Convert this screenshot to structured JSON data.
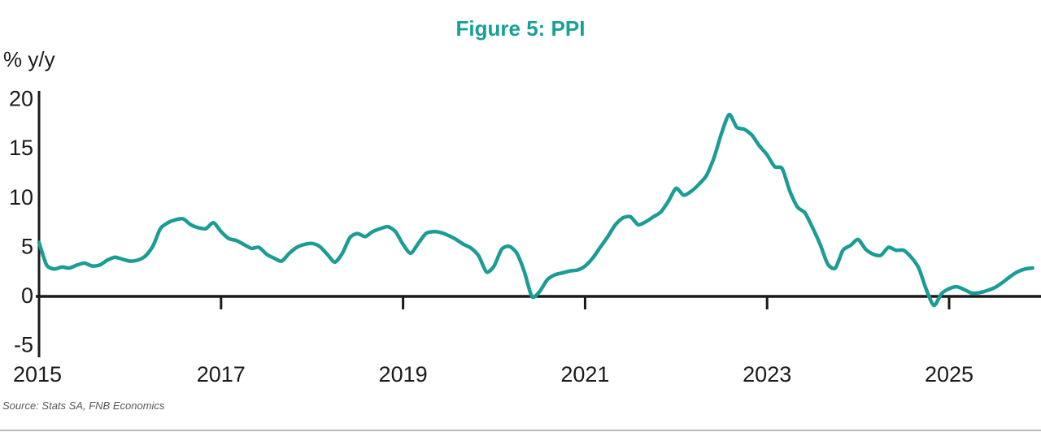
{
  "figure": {
    "title": "Figure 5: PPI",
    "y_axis_unit_label": "% y/y",
    "source": "Source: Stats SA, FNB Economics",
    "title_color": "#17a09a"
  },
  "chart_data": {
    "type": "line",
    "title": "Figure 5: PPI",
    "ylabel": "% y/y",
    "series_name": "PPI (% y/y)",
    "line_color": "#1b9c96",
    "axis_color": "#1a1a1a",
    "frequency": "monthly",
    "x_start_year": 2015,
    "x_tick_labels": [
      "2015",
      "2017",
      "2019",
      "2021",
      "2023",
      "2025"
    ],
    "y_ticks": [
      20,
      15,
      10,
      5,
      0,
      -5
    ],
    "ylim": [
      -5,
      20
    ],
    "grid": false,
    "legend": "none",
    "values_by_year": {
      "2015": [
        5.4,
        3.1,
        2.7,
        2.9,
        2.8,
        3.1,
        3.3,
        3.0,
        3.1,
        3.6,
        3.9,
        3.7
      ],
      "2016": [
        3.5,
        3.6,
        4.0,
        5.0,
        6.8,
        7.4,
        7.7,
        7.8,
        7.2,
        6.9,
        6.8,
        7.4
      ],
      "2017": [
        6.5,
        5.8,
        5.6,
        5.2,
        4.8,
        4.9,
        4.2,
        3.8,
        3.5,
        4.3,
        4.9,
        5.2
      ],
      "2018": [
        5.3,
        5.0,
        4.2,
        3.4,
        4.3,
        5.9,
        6.3,
        6.0,
        6.5,
        6.8,
        7.0,
        6.5
      ],
      "2019": [
        5.2,
        4.3,
        5.3,
        6.3,
        6.5,
        6.4,
        6.1,
        5.7,
        5.2,
        4.8,
        4.0,
        2.4
      ],
      "2020": [
        3.0,
        4.7,
        5.0,
        4.3,
        2.4,
        -0.1,
        0.4,
        1.6,
        2.1,
        2.3,
        2.5,
        2.6
      ],
      "2021": [
        3.0,
        3.8,
        4.9,
        6.0,
        7.2,
        7.9,
        8.0,
        7.2,
        7.5,
        8.0,
        8.5,
        9.6
      ],
      "2022": [
        10.9,
        10.2,
        10.6,
        11.3,
        12.2,
        14.0,
        16.5,
        18.4,
        17.1,
        16.9,
        16.3,
        15.2
      ],
      "2023": [
        14.3,
        13.1,
        12.9,
        10.6,
        9.0,
        8.4,
        6.9,
        5.2,
        3.2,
        2.8,
        4.6,
        5.1
      ],
      "2024": [
        5.7,
        4.7,
        4.2,
        4.1,
        4.9,
        4.6,
        4.6,
        3.9,
        2.8,
        0.6,
        -1.0,
        0.2
      ],
      "2025": [
        0.7,
        0.9,
        0.6,
        0.25,
        0.3,
        0.5,
        0.8,
        1.3,
        1.9,
        2.4,
        2.7,
        2.8
      ]
    }
  }
}
